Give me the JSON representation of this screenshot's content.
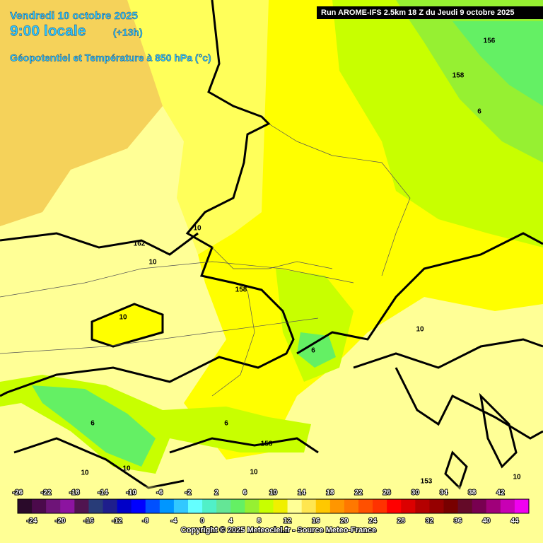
{
  "header": {
    "date": "Vendredi 10 octobre 2025",
    "time": "9:00 locale",
    "lead": "(+13h)",
    "field": "Géopotentiel et Température à 850 hPa (°c)",
    "run": "Run AROME-IFS 2.5km 18 Z du Jeudi 9 octobre 2025"
  },
  "contour_labels": [
    "156",
    "158",
    "6",
    "10",
    "162",
    "10",
    "158",
    "10",
    "10",
    "6",
    "6",
    "6",
    "158",
    "10",
    "10",
    "10",
    "153",
    "10"
  ],
  "colorscale": {
    "colors": [
      "#2a0a2a",
      "#4b0a4b",
      "#6e1478",
      "#8c14a0",
      "#501450",
      "#283c78",
      "#1e1e8c",
      "#0000c8",
      "#0000ff",
      "#0050ff",
      "#0096ff",
      "#32c8ff",
      "#64ffff",
      "#50f0c8",
      "#64e696",
      "#64f064",
      "#96f032",
      "#c8ff00",
      "#f0f000",
      "#ffff96",
      "#ffe650",
      "#ffc800",
      "#ff9600",
      "#ff7800",
      "#ff5000",
      "#ff3200",
      "#ff0000",
      "#dc0000",
      "#b40000",
      "#960000",
      "#780000",
      "#640a28",
      "#780050",
      "#a0007a",
      "#c800b4",
      "#f000f0"
    ],
    "top_labels": [
      -26,
      -22,
      -18,
      -14,
      -10,
      -6,
      -2,
      2,
      6,
      10,
      14,
      18,
      22,
      26,
      30,
      34,
      38,
      42
    ],
    "bottom_labels": [
      -24,
      -20,
      -16,
      -12,
      -8,
      -4,
      0,
      4,
      8,
      12,
      16,
      20,
      24,
      28,
      32,
      36,
      40,
      44
    ]
  },
  "footer": {
    "copyright": "Copyright © 2025 Meteociel.fr - Source Meteo-France"
  }
}
